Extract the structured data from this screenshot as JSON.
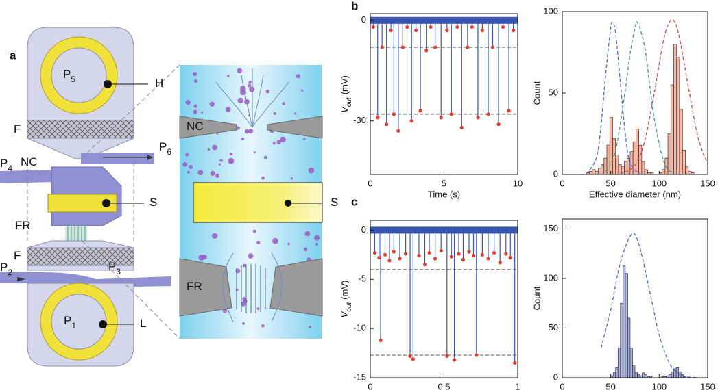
{
  "panel_labels": [
    "a",
    "b",
    "c"
  ],
  "diagram": {
    "labels": [
      {
        "text": "P",
        "sub": "5"
      },
      {
        "text": "H"
      },
      {
        "text": "F"
      },
      {
        "text": "NC"
      },
      {
        "text": "P",
        "sub": "6"
      },
      {
        "text": "P",
        "sub": "4"
      },
      {
        "text": "S"
      },
      {
        "text": "FR"
      },
      {
        "text": "F"
      },
      {
        "text": "P",
        "sub": "2"
      },
      {
        "text": "P",
        "sub": "3"
      },
      {
        "text": "P",
        "sub": "1"
      },
      {
        "text": "L"
      }
    ],
    "inset_labels": [
      {
        "text": "NC"
      },
      {
        "text": "S"
      },
      {
        "text": "FR"
      }
    ]
  },
  "chart_data": [
    {
      "type": "trace",
      "xlabel": "Time (s)",
      "ylabel": {
        "symbol": "V",
        "sub": "out",
        "unit": "(mV)"
      },
      "xlim": [
        0,
        10
      ],
      "xticks": [
        0,
        5,
        10
      ],
      "ylim": [
        -46,
        2
      ],
      "yticks": [
        -30,
        0
      ],
      "baseline": 0,
      "line_color": "#3a55b0",
      "dot_color": "#e43a2e",
      "reference_lines": [
        -8,
        -28
      ],
      "x": [
        0.2,
        0.5,
        0.8,
        1.1,
        1.4,
        1.6,
        1.9,
        2.2,
        2.5,
        2.8,
        3.1,
        3.4,
        3.8,
        4.1,
        4.4,
        4.8,
        5.2,
        5.5,
        5.9,
        6.2,
        6.6,
        6.9,
        7.3,
        7.6,
        8.0,
        8.3,
        8.7,
        9.0,
        9.4,
        9.7
      ],
      "values": [
        -2,
        -29,
        -8,
        -31,
        -3,
        -28,
        -33,
        -8,
        -2,
        -30,
        -3,
        -27,
        -9,
        -2,
        -8,
        -29,
        -3,
        -28,
        -2,
        -32,
        -8,
        -2,
        -29,
        -3,
        -28,
        -8,
        -31,
        -2,
        -27,
        -3
      ]
    },
    {
      "type": "histogram",
      "xlabel": "Effective diameter (nm)",
      "ylabel": "Count",
      "xlim": [
        0,
        150
      ],
      "xticks": [
        0,
        50,
        100,
        150
      ],
      "ylim": [
        0,
        100
      ],
      "yticks": [
        0,
        50,
        100
      ],
      "color": "#f5b9a6",
      "edge_color": "#3a2a2a",
      "bins": [
        25,
        28,
        31,
        34,
        37,
        40,
        43,
        46,
        49,
        52,
        55,
        58,
        61,
        64,
        67,
        70,
        73,
        76,
        79,
        82,
        85,
        88,
        91,
        94,
        97,
        100,
        103,
        106,
        109,
        112,
        115,
        118,
        121,
        124,
        127,
        130,
        133,
        136
      ],
      "counts": [
        1,
        2,
        3,
        2,
        4,
        6,
        10,
        18,
        35,
        22,
        12,
        6,
        5,
        8,
        10,
        14,
        20,
        28,
        18,
        8,
        3,
        1,
        1,
        0,
        0,
        1,
        3,
        10,
        25,
        55,
        80,
        72,
        40,
        15,
        5,
        2,
        1
      ],
      "fits": [
        {
          "color": "#4a6ac8",
          "x": [
            25,
            35,
            40,
            45,
            50,
            52,
            55,
            60,
            65,
            70,
            80
          ],
          "values": [
            0.3,
            10,
            30,
            63,
            90,
            93,
            87,
            56,
            25,
            7,
            0.2
          ]
        },
        {
          "color": "#3a9a8a",
          "x": [
            45,
            55,
            65,
            70,
            75,
            78,
            85,
            90,
            95,
            105,
            115
          ],
          "values": [
            2.1,
            14.8,
            51.7,
            74.5,
            90,
            93,
            78.5,
            56,
            34,
            7.4,
            0.8
          ]
        },
        {
          "color": "#c84a4a",
          "x": [
            60,
            75,
            85,
            95,
            105,
            113,
            120,
            130,
            140,
            150
          ],
          "values": [
            0.4,
            5.6,
            20.5,
            50.4,
            83.8,
            95,
            86.3,
            54,
            22.9,
            6.6
          ]
        }
      ]
    },
    {
      "type": "trace",
      "xlabel": "Time (s)",
      "ylabel": {
        "symbol": "V",
        "sub": "out",
        "unit": "(mV)"
      },
      "xlim": [
        0,
        1
      ],
      "xticks": [
        0,
        0.5,
        1
      ],
      "ylim": [
        -15,
        1
      ],
      "yticks": [
        -15,
        -10,
        -5,
        0
      ],
      "baseline": 0,
      "line_color": "#3a55b0",
      "dot_color": "#e43a2e",
      "reference_lines": [
        -4,
        -12.7
      ],
      "x": [
        0.03,
        0.06,
        0.07,
        0.1,
        0.13,
        0.16,
        0.2,
        0.24,
        0.27,
        0.29,
        0.33,
        0.37,
        0.4,
        0.44,
        0.48,
        0.52,
        0.55,
        0.57,
        0.6,
        0.63,
        0.67,
        0.7,
        0.72,
        0.76,
        0.8,
        0.84,
        0.88,
        0.92,
        0.95,
        0.98
      ],
      "values": [
        -2.3,
        -2.8,
        -11.2,
        -2.5,
        -3.1,
        -2.2,
        -2.9,
        -2.4,
        -12.8,
        -13.1,
        -2.6,
        -3.5,
        -2.3,
        -2.9,
        -2.1,
        -12.8,
        -2.7,
        -13.2,
        -2.4,
        -3.0,
        -2.2,
        -2.6,
        -12.7,
        -2.5,
        -2.9,
        -2.3,
        -3.3,
        -2.4,
        -2.8,
        -13.5
      ]
    },
    {
      "type": "histogram",
      "xlabel": "Effective diameter (nm)",
      "ylabel": "Count",
      "xlim": [
        0,
        150
      ],
      "xticks": [
        0,
        50,
        100,
        150
      ],
      "ylim": [
        0,
        160
      ],
      "yticks": [
        0,
        50,
        100,
        150
      ],
      "color": "#aab3d8",
      "edge_color": "#2a2a44",
      "bins": [
        50,
        52.5,
        55,
        57.5,
        60,
        62.5,
        65,
        67.5,
        70,
        72.5,
        75,
        77.5,
        80,
        82.5,
        85,
        87.5,
        90,
        92.5,
        95,
        97.5,
        100,
        102.5,
        105,
        107.5,
        110,
        112.5,
        115,
        117.5,
        120,
        122.5,
        125,
        127.5
      ],
      "counts": [
        2,
        5,
        10,
        30,
        75,
        113,
        105,
        60,
        30,
        12,
        5,
        3,
        2,
        5,
        3,
        1,
        1,
        0,
        0,
        0,
        0,
        1,
        1,
        2,
        3,
        6,
        9,
        10,
        6,
        3,
        1
      ],
      "fits": [
        {
          "color": "#4a6ac8",
          "x": [
            40,
            50,
            60,
            72,
            80,
            90,
            100,
            110,
            120,
            130,
            140
          ],
          "values": [
            29.9,
            68.7,
            116,
            145,
            131,
            88,
            43.2,
            15.6,
            4.1,
            0.8,
            0.1
          ]
        }
      ]
    }
  ]
}
